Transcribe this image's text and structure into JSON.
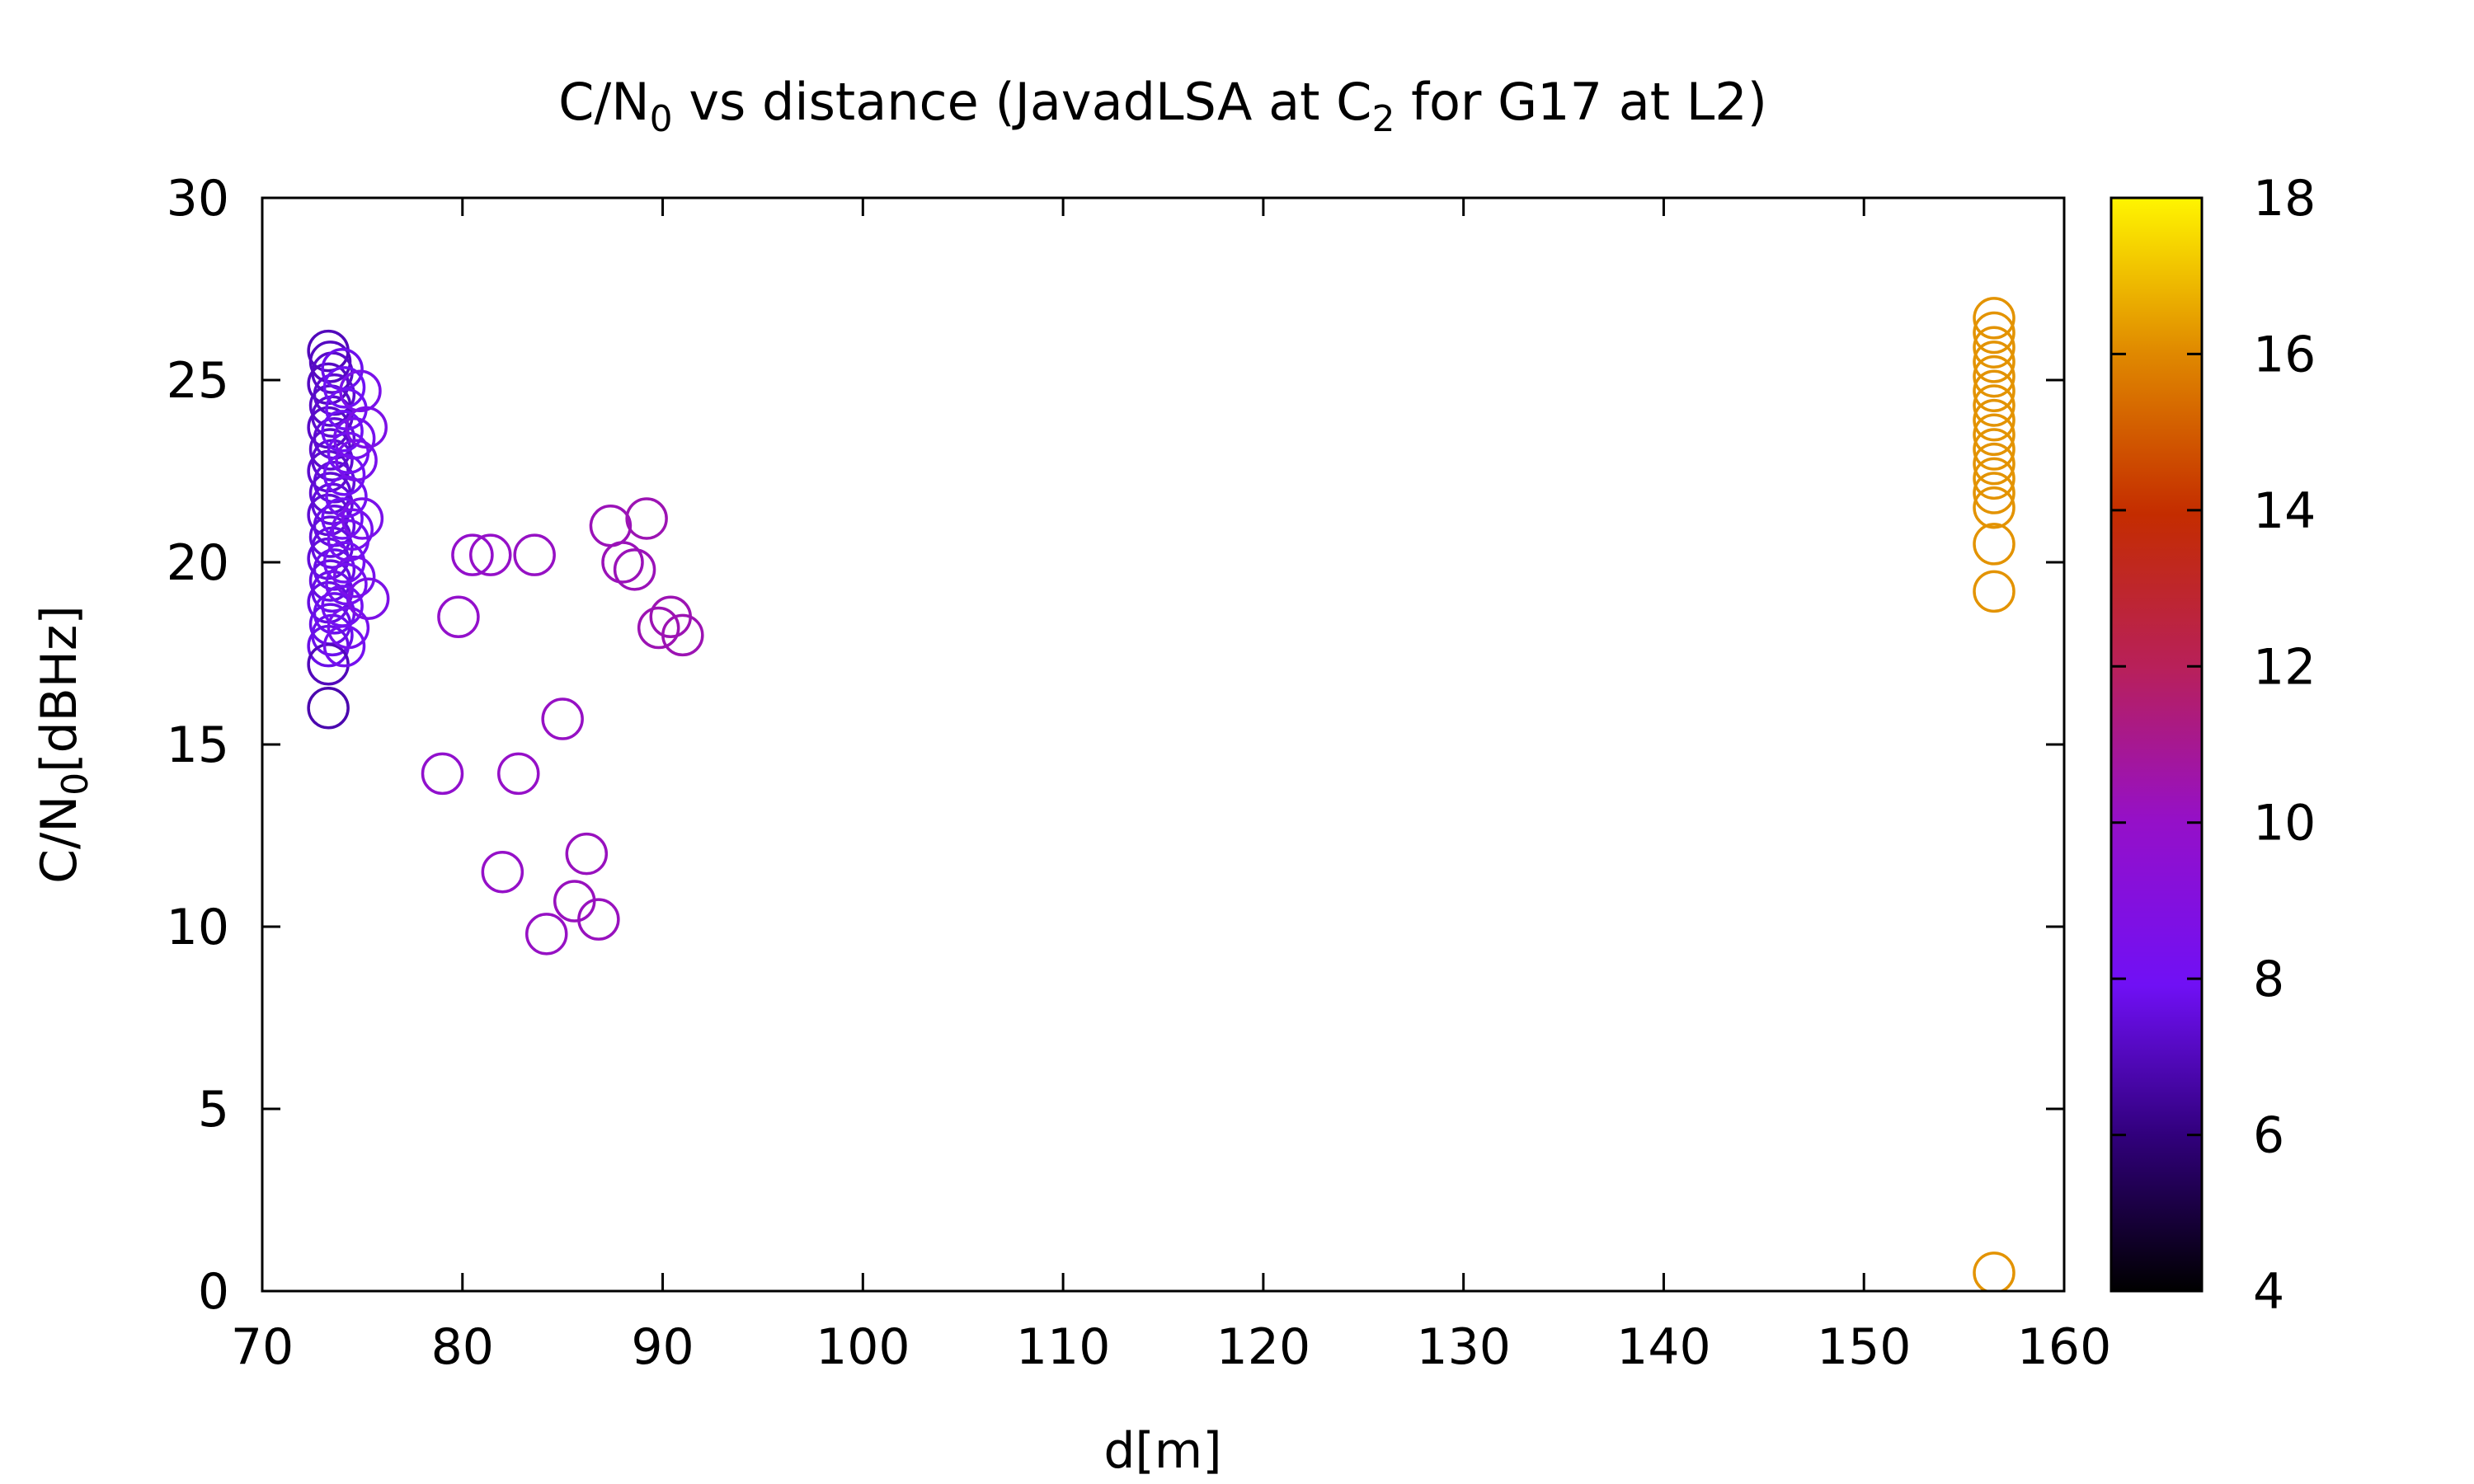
{
  "chart_data": {
    "type": "scatter",
    "title": {
      "parts": [
        {
          "text": "C/N"
        },
        {
          "text": "0",
          "sub": true
        },
        {
          "text": " vs distance (JavadLSA at C"
        },
        {
          "text": "2",
          "sub": true
        },
        {
          "text": " for G17 at L2)"
        }
      ]
    },
    "xlabel": "d[m]",
    "ylabel": {
      "parts": [
        {
          "text": "C/N"
        },
        {
          "text": "0",
          "sub": true
        },
        {
          "text": "[dBHz]"
        }
      ]
    },
    "xlim": [
      70,
      160
    ],
    "ylim": [
      0,
      30
    ],
    "xticks": [
      "70",
      "80",
      "90",
      "100",
      "110",
      "120",
      "130",
      "140",
      "150",
      "160"
    ],
    "yticks": [
      "0",
      "5",
      "10",
      "15",
      "20",
      "25",
      "30"
    ],
    "colorbar": {
      "range": [
        4,
        18
      ],
      "ticks": [
        "4",
        "6",
        "8",
        "10",
        "12",
        "14",
        "16",
        "18"
      ],
      "palette": "black-purple-red-orange-yellow"
    },
    "marker": "open-circle",
    "points": [
      {
        "x": 73.3,
        "y": 25.8,
        "c": 7.0
      },
      {
        "x": 73.4,
        "y": 25.5,
        "c": 7.1
      },
      {
        "x": 73.5,
        "y": 25.2,
        "c": 7.2
      },
      {
        "x": 73.3,
        "y": 24.9,
        "c": 7.1
      },
      {
        "x": 73.6,
        "y": 24.6,
        "c": 7.3
      },
      {
        "x": 73.4,
        "y": 24.3,
        "c": 7.2
      },
      {
        "x": 73.5,
        "y": 24.0,
        "c": 7.3
      },
      {
        "x": 73.3,
        "y": 23.7,
        "c": 7.2
      },
      {
        "x": 73.6,
        "y": 23.4,
        "c": 7.4
      },
      {
        "x": 73.4,
        "y": 23.1,
        "c": 7.3
      },
      {
        "x": 73.5,
        "y": 22.8,
        "c": 7.4
      },
      {
        "x": 73.3,
        "y": 22.5,
        "c": 7.3
      },
      {
        "x": 73.6,
        "y": 22.2,
        "c": 7.5
      },
      {
        "x": 73.4,
        "y": 21.9,
        "c": 7.4
      },
      {
        "x": 73.5,
        "y": 21.6,
        "c": 7.5
      },
      {
        "x": 73.3,
        "y": 21.3,
        "c": 7.4
      },
      {
        "x": 73.6,
        "y": 21.0,
        "c": 7.6
      },
      {
        "x": 73.4,
        "y": 20.7,
        "c": 7.5
      },
      {
        "x": 73.5,
        "y": 20.4,
        "c": 7.6
      },
      {
        "x": 73.3,
        "y": 20.1,
        "c": 7.5
      },
      {
        "x": 73.6,
        "y": 19.8,
        "c": 7.7
      },
      {
        "x": 73.4,
        "y": 19.5,
        "c": 7.6
      },
      {
        "x": 73.5,
        "y": 19.2,
        "c": 7.7
      },
      {
        "x": 73.3,
        "y": 18.9,
        "c": 7.6
      },
      {
        "x": 73.6,
        "y": 18.6,
        "c": 7.8
      },
      {
        "x": 73.4,
        "y": 18.3,
        "c": 7.7
      },
      {
        "x": 73.5,
        "y": 18.0,
        "c": 7.8
      },
      {
        "x": 73.3,
        "y": 17.7,
        "c": 7.7
      },
      {
        "x": 73.3,
        "y": 17.2,
        "c": 7.0
      },
      {
        "x": 73.3,
        "y": 16.0,
        "c": 6.8
      },
      {
        "x": 74.0,
        "y": 25.3,
        "c": 7.8
      },
      {
        "x": 74.1,
        "y": 24.8,
        "c": 7.9
      },
      {
        "x": 74.2,
        "y": 24.2,
        "c": 8.0
      },
      {
        "x": 74.0,
        "y": 23.6,
        "c": 7.9
      },
      {
        "x": 74.3,
        "y": 23.0,
        "c": 8.1
      },
      {
        "x": 74.1,
        "y": 22.4,
        "c": 8.0
      },
      {
        "x": 74.2,
        "y": 21.8,
        "c": 8.1
      },
      {
        "x": 74.0,
        "y": 21.2,
        "c": 8.0
      },
      {
        "x": 74.3,
        "y": 20.6,
        "c": 8.2
      },
      {
        "x": 74.1,
        "y": 20.0,
        "c": 8.1
      },
      {
        "x": 74.2,
        "y": 19.4,
        "c": 8.2
      },
      {
        "x": 74.0,
        "y": 18.8,
        "c": 8.1
      },
      {
        "x": 74.3,
        "y": 18.2,
        "c": 8.3
      },
      {
        "x": 74.1,
        "y": 17.7,
        "c": 8.2
      },
      {
        "x": 74.6,
        "y": 23.4,
        "c": 8.3
      },
      {
        "x": 74.7,
        "y": 22.8,
        "c": 8.4
      },
      {
        "x": 74.5,
        "y": 20.9,
        "c": 8.3
      },
      {
        "x": 74.6,
        "y": 19.6,
        "c": 8.4
      },
      {
        "x": 74.9,
        "y": 24.7,
        "c": 8.5
      },
      {
        "x": 75.2,
        "y": 23.7,
        "c": 8.6
      },
      {
        "x": 75.0,
        "y": 21.2,
        "c": 8.5
      },
      {
        "x": 75.3,
        "y": 19.0,
        "c": 8.6
      },
      {
        "x": 79.0,
        "y": 14.2,
        "c": 9.8
      },
      {
        "x": 79.8,
        "y": 18.5,
        "c": 9.9
      },
      {
        "x": 80.5,
        "y": 20.2,
        "c": 9.9
      },
      {
        "x": 81.4,
        "y": 20.2,
        "c": 10.0
      },
      {
        "x": 82.0,
        "y": 11.5,
        "c": 10.0
      },
      {
        "x": 82.8,
        "y": 14.2,
        "c": 10.0
      },
      {
        "x": 83.6,
        "y": 20.2,
        "c": 10.1
      },
      {
        "x": 84.2,
        "y": 9.8,
        "c": 10.1
      },
      {
        "x": 85.0,
        "y": 15.7,
        "c": 10.1
      },
      {
        "x": 85.6,
        "y": 10.7,
        "c": 10.2
      },
      {
        "x": 86.2,
        "y": 12.0,
        "c": 10.2
      },
      {
        "x": 86.8,
        "y": 10.2,
        "c": 10.2
      },
      {
        "x": 87.4,
        "y": 21.0,
        "c": 10.3
      },
      {
        "x": 88.0,
        "y": 20.0,
        "c": 10.3
      },
      {
        "x": 88.6,
        "y": 19.8,
        "c": 10.3
      },
      {
        "x": 89.2,
        "y": 21.2,
        "c": 10.4
      },
      {
        "x": 89.8,
        "y": 18.2,
        "c": 10.4
      },
      {
        "x": 90.4,
        "y": 18.5,
        "c": 10.4
      },
      {
        "x": 91.0,
        "y": 18.0,
        "c": 10.4
      },
      {
        "x": 156.5,
        "y": 26.7,
        "c": 16.2
      },
      {
        "x": 156.5,
        "y": 26.3,
        "c": 16.2
      },
      {
        "x": 156.5,
        "y": 25.9,
        "c": 16.2
      },
      {
        "x": 156.5,
        "y": 25.5,
        "c": 16.2
      },
      {
        "x": 156.5,
        "y": 25.1,
        "c": 16.2
      },
      {
        "x": 156.5,
        "y": 24.7,
        "c": 16.2
      },
      {
        "x": 156.5,
        "y": 24.3,
        "c": 16.2
      },
      {
        "x": 156.5,
        "y": 23.9,
        "c": 16.2
      },
      {
        "x": 156.5,
        "y": 23.5,
        "c": 16.2
      },
      {
        "x": 156.5,
        "y": 23.1,
        "c": 16.2
      },
      {
        "x": 156.5,
        "y": 22.7,
        "c": 16.2
      },
      {
        "x": 156.5,
        "y": 22.3,
        "c": 16.2
      },
      {
        "x": 156.5,
        "y": 21.9,
        "c": 16.2
      },
      {
        "x": 156.5,
        "y": 21.5,
        "c": 16.2
      },
      {
        "x": 156.5,
        "y": 20.5,
        "c": 16.2
      },
      {
        "x": 156.5,
        "y": 19.2,
        "c": 16.2
      },
      {
        "x": 156.5,
        "y": 0.5,
        "c": 16.2
      }
    ]
  }
}
